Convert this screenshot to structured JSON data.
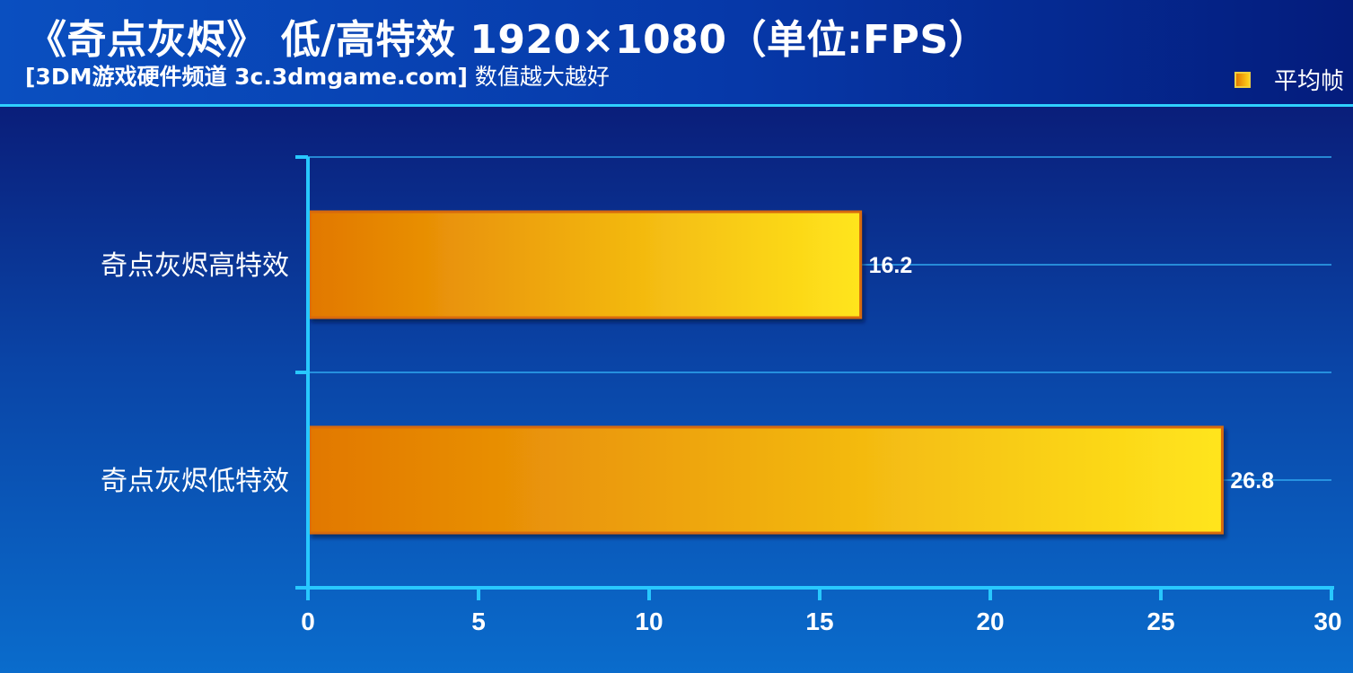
{
  "header": {
    "title": "《奇点灰烬》 低/高特效 1920×1080（单位:FPS）",
    "subtitle_bold": "[3DM游戏硬件频道 3c.3dmgame.com]",
    "subtitle_rest": " 数值越大越好"
  },
  "legend": {
    "label": "平均帧"
  },
  "colors": {
    "bar_start": "#e27800",
    "bar_end": "#ffe51c",
    "bar_border": "#d86a10",
    "axis": "#28c8ff",
    "gridline": "#2fa8f0"
  },
  "chart_data": {
    "type": "bar",
    "orientation": "horizontal",
    "title": "《奇点灰烬》 低/高特效 1920×1080（单位:FPS）",
    "categories": [
      "奇点灰烬高特效",
      "奇点灰烬低特效"
    ],
    "series": [
      {
        "name": "平均帧",
        "values": [
          16.2,
          26.8
        ]
      }
    ],
    "value_labels": [
      "16.2",
      "26.8"
    ],
    "xlim": [
      0,
      30
    ],
    "xticks": [
      0,
      5,
      10,
      15,
      20,
      25,
      30
    ],
    "tick_labels": [
      "0",
      "5",
      "10",
      "15",
      "20",
      "25",
      "30"
    ],
    "grid": true,
    "legend_position": "top-right"
  }
}
